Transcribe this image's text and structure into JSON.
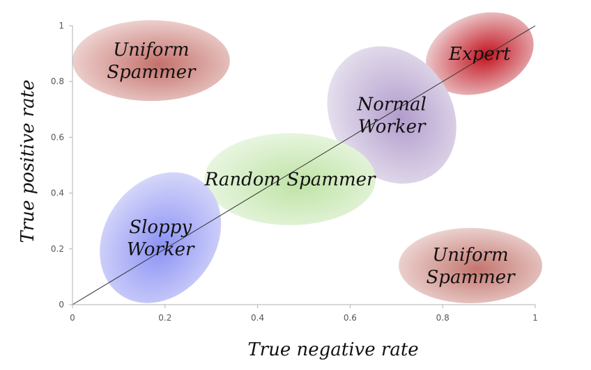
{
  "chart_data": {
    "type": "scatter",
    "title": "",
    "xlabel": "True negative rate",
    "ylabel": "True positive rate",
    "xlim": [
      0,
      1
    ],
    "ylim": [
      0,
      1
    ],
    "x_ticks": [
      "0",
      "0.2",
      "0.4",
      "0.6",
      "0.8",
      "1"
    ],
    "y_ticks": [
      "0",
      "0.2",
      "0.4",
      "0.6",
      "0.8",
      "1"
    ],
    "grid": false,
    "diagonal": {
      "from": [
        0,
        0
      ],
      "to": [
        1,
        1
      ]
    },
    "regions": [
      {
        "label_lines": [
          "Uniform",
          "Spammer"
        ],
        "cx": 0.17,
        "cy": 0.875,
        "rx": 0.17,
        "ry": 0.145,
        "angle": 0,
        "fill_light": "#f3e0de",
        "fill_dark": "#c4706a"
      },
      {
        "label_lines": [
          "Expert"
        ],
        "cx": 0.88,
        "cy": 0.9,
        "rx": 0.12,
        "ry": 0.14,
        "angle": -20,
        "fill_light": "#f1e3e3",
        "fill_dark": "#c3121e"
      },
      {
        "label_lines": [
          "Normal",
          "Worker"
        ],
        "cx": 0.69,
        "cy": 0.68,
        "rx": 0.13,
        "ry": 0.26,
        "angle": -35,
        "fill_light": "#ece8f1",
        "fill_dark": "#b29ccd"
      },
      {
        "label_lines": [
          "Random Spammer"
        ],
        "cx": 0.47,
        "cy": 0.45,
        "rx": 0.185,
        "ry": 0.165,
        "angle": 0,
        "fill_light": "#eef8e8",
        "fill_dark": "#bfe3a6"
      },
      {
        "label_lines": [
          "Sloppy",
          "Worker"
        ],
        "cx": 0.19,
        "cy": 0.24,
        "rx": 0.12,
        "ry": 0.25,
        "angle": 35,
        "fill_light": "#dfe0fa",
        "fill_dark": "#8c92f4"
      },
      {
        "label_lines": [
          "Uniform",
          "Spammer"
        ],
        "cx": 0.86,
        "cy": 0.14,
        "rx": 0.155,
        "ry": 0.135,
        "angle": 0,
        "fill_light": "#f1e0de",
        "fill_dark": "#c4756e"
      }
    ]
  },
  "colors": {
    "axis": "#b0b0b0",
    "diagonal": "#333333",
    "text": "#111111"
  }
}
